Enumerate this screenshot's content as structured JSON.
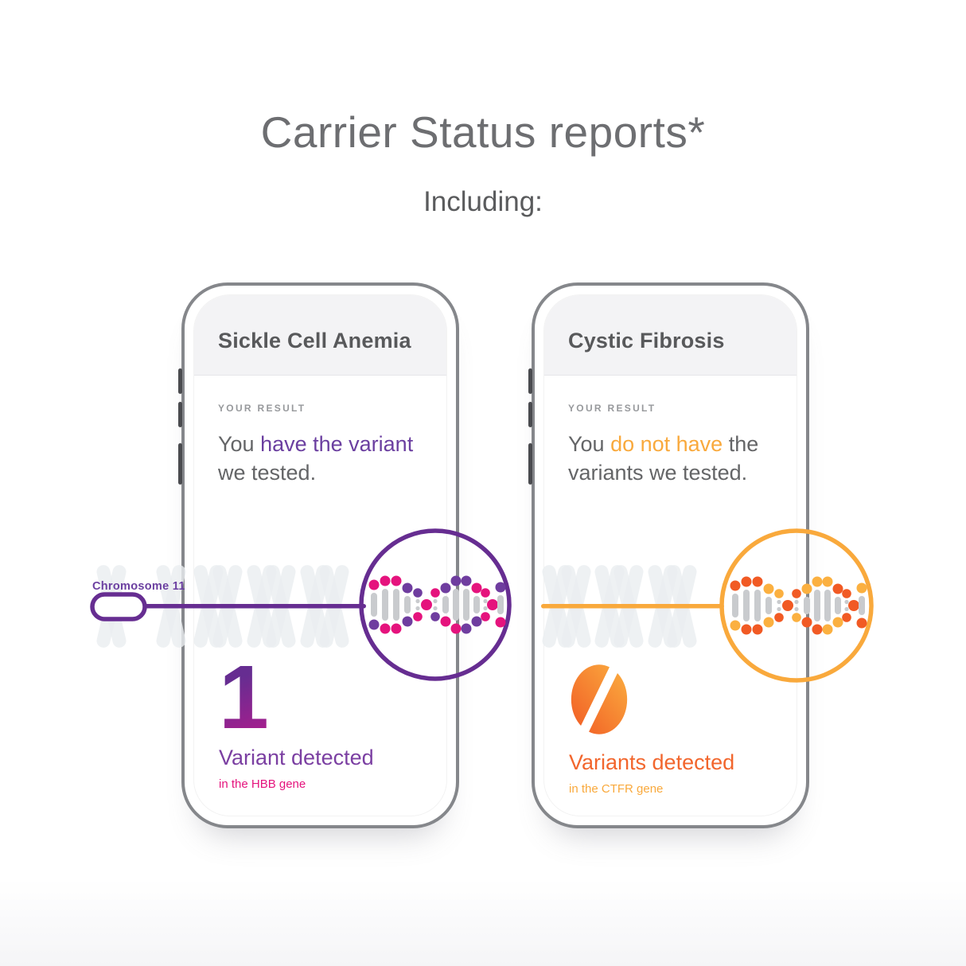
{
  "page": {
    "title": "Carrier Status reports*",
    "subtitle": "Including:"
  },
  "colors": {
    "title_text": "#6d6e71",
    "subtitle_text": "#5a5b5d",
    "header_text": "#58595b",
    "label_gray": "#97999c",
    "gray_text": "#646567",
    "purple": "#662d91",
    "purple_text": "#6b3fa0",
    "magenta": "#e5137d",
    "orange": "#f2662d",
    "amber": "#f9a93c",
    "chromosome_gray": "#eaedf0",
    "dna_bar_gray": "#c9cbce"
  },
  "dna_dot_colors": {
    "left": [
      "#e5137d",
      "#6f3d9f"
    ],
    "right": [
      "#f15a24",
      "#fbb040"
    ]
  },
  "phones": [
    {
      "report_title": "Sickle Cell Anemia",
      "result_label": "YOUR RESULT",
      "result_prefix": "You ",
      "result_highlight": "have the variant",
      "result_suffix": " we tested.",
      "chromosome_label": "Chromosome 11",
      "variant_count": "1",
      "count_caption": "Variant detected",
      "gene_caption": "in the HBB gene"
    },
    {
      "report_title": "Cystic Fibrosis",
      "result_label": "YOUR RESULT",
      "result_prefix": "You ",
      "result_highlight": "do not have",
      "result_suffix": " the variants we tested.",
      "variant_count": "0",
      "count_caption": "Variants detected",
      "gene_caption": "in the CTFR gene"
    }
  ]
}
